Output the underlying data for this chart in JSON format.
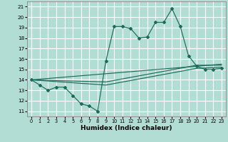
{
  "xlabel": "Humidex (Indice chaleur)",
  "background_color": "#b2ddd4",
  "grid_color": "#ffffff",
  "line_color": "#1a6b5a",
  "xlim": [
    -0.5,
    23.5
  ],
  "ylim": [
    10.5,
    21.5
  ],
  "yticks": [
    11,
    12,
    13,
    14,
    15,
    16,
    17,
    18,
    19,
    20,
    21
  ],
  "xticks": [
    0,
    1,
    2,
    3,
    4,
    5,
    6,
    7,
    8,
    9,
    10,
    11,
    12,
    13,
    14,
    15,
    16,
    17,
    18,
    19,
    20,
    21,
    22,
    23
  ],
  "line1_x": [
    0,
    1,
    2,
    3,
    4,
    5,
    6,
    7,
    8,
    9,
    10,
    11,
    12,
    13,
    14,
    15,
    16,
    17,
    18,
    19,
    20,
    21,
    22,
    23
  ],
  "line1_y": [
    14.0,
    13.5,
    13.0,
    13.3,
    13.3,
    12.5,
    11.7,
    11.5,
    11.0,
    15.8,
    19.1,
    19.1,
    18.9,
    18.0,
    18.1,
    19.5,
    19.5,
    20.8,
    19.1,
    16.3,
    15.3,
    15.0,
    15.0,
    15.1
  ],
  "line2_x": [
    0,
    23
  ],
  "line2_y": [
    14.0,
    15.5
  ],
  "line3_x": [
    0,
    9,
    20,
    23
  ],
  "line3_y": [
    14.0,
    13.8,
    15.4,
    15.4
  ],
  "line4_x": [
    0,
    9,
    20,
    23
  ],
  "line4_y": [
    14.0,
    13.5,
    15.1,
    15.2
  ]
}
